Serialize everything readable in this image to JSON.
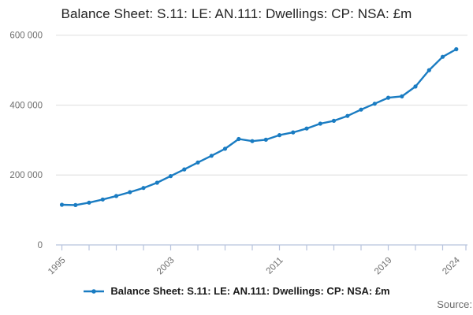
{
  "title": "Balance Sheet: S.11: LE: AN.111: Dwellings: CP: NSA: £m",
  "legend": {
    "label": "Balance Sheet: S.11: LE: AN.111: Dwellings: CP: NSA: £m"
  },
  "source_label": "Source:",
  "colors": {
    "line": "#1a7cc2",
    "marker": "#1a7cc2",
    "grid": "#e3e3e3",
    "axis": "#b7c3dd",
    "tick_text": "#6e6e6e",
    "title_text": "#222222"
  },
  "chart_data": {
    "type": "line",
    "title": "Balance Sheet: S.11: LE: AN.111: Dwellings: CP: NSA: £m",
    "series_name": "Balance Sheet: S.11: LE: AN.111: Dwellings: CP: NSA: £m",
    "xlabel": "",
    "ylabel": "",
    "x": [
      1995,
      1996,
      1997,
      1998,
      1999,
      2000,
      2001,
      2002,
      2003,
      2004,
      2005,
      2006,
      2007,
      2008,
      2009,
      2010,
      2011,
      2012,
      2013,
      2014,
      2015,
      2016,
      2017,
      2018,
      2019,
      2020,
      2021,
      2022,
      2023,
      2024
    ],
    "values": [
      115000,
      114000,
      121000,
      130000,
      140000,
      151000,
      163000,
      178000,
      197000,
      216000,
      236000,
      255000,
      275000,
      303000,
      297000,
      301000,
      314000,
      322000,
      333000,
      347000,
      355000,
      369000,
      387000,
      404000,
      421000,
      425000,
      453000,
      500000,
      538000,
      560000
    ],
    "ylim": [
      0,
      600000
    ],
    "yticks": [
      {
        "value": 0,
        "label": "0"
      },
      {
        "value": 200000,
        "label": "200 000"
      },
      {
        "value": 400000,
        "label": "400 000"
      },
      {
        "value": 600000,
        "label": "600 000"
      }
    ],
    "xtick_minor_step_years": 2,
    "xtick_labeled_years": [
      1995,
      2003,
      2011,
      2019,
      2024
    ],
    "grid": "horizontal-only",
    "legend_position": "bottom-center",
    "marker_shape": "circle"
  }
}
